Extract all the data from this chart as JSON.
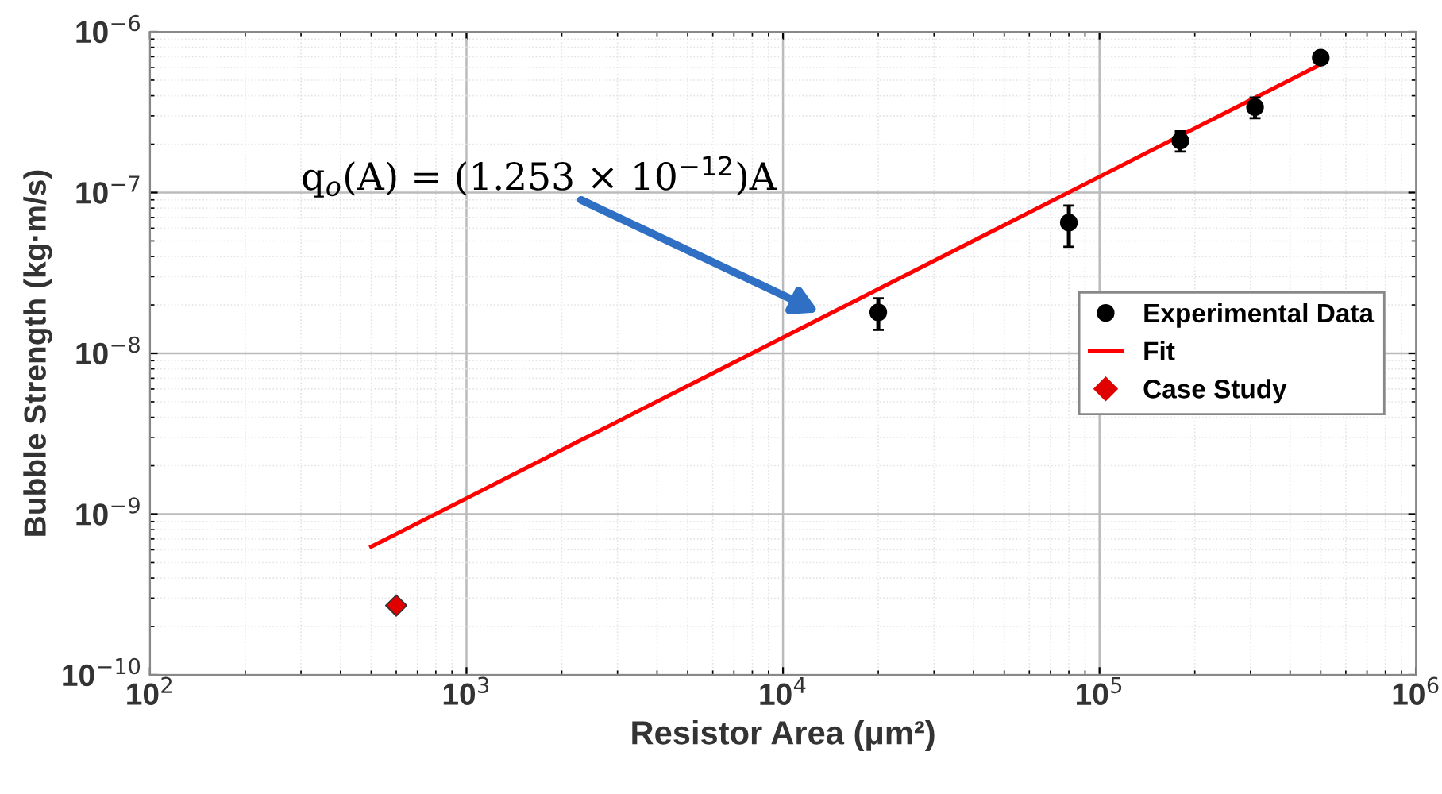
{
  "chart_data": {
    "type": "scatter",
    "xlabel": "Resistor Area (μm²)",
    "ylabel": "Bubble Strength (kg·m/s)",
    "log": "xy",
    "grid": true,
    "legend": "center right",
    "xlim": [
      100,
      1000000
    ],
    "ylim": [
      1e-10,
      1e-06
    ],
    "xticks": [
      {
        "value": 100,
        "label": "10$^{2}$"
      },
      {
        "value": 1000,
        "label": "10$^{3}$"
      },
      {
        "value": 10000,
        "label": "10$^{4}$"
      },
      {
        "value": 100000,
        "label": "10$^{5}$"
      },
      {
        "value": 1000000,
        "label": "10$^{6}$"
      }
    ],
    "yticks": [
      {
        "value": 1e-10,
        "label": "10$^{−10}$"
      },
      {
        "value": 1e-09,
        "label": "10$^{−9}$"
      },
      {
        "value": 1e-08,
        "label": "10$^{−8}$"
      },
      {
        "value": 1e-07,
        "label": "10$^{−7}$"
      },
      {
        "value": 1e-06,
        "label": "10$^{−6}$"
      }
    ],
    "series": [
      {
        "name": "Experimental Data",
        "marker": "circle",
        "color": "#000000",
        "x": [
          20000,
          80000,
          180000,
          310000,
          500000
        ],
        "values": [
          1.8e-08,
          6.5e-08,
          2.1e-07,
          3.4e-07,
          6.9e-07
        ],
        "errors": [
          [
            1.4e-08,
            2.2e-08
          ],
          [
            4.6e-08,
            8.3e-08
          ],
          [
            1.8e-07,
            2.4e-07
          ],
          [
            2.9e-07,
            3.9e-07
          ],
          null
        ]
      },
      {
        "name": "Fit",
        "type": "line",
        "marker": "none",
        "line_style": "solid",
        "color": "#ff0000",
        "x": [
          500,
          500000
        ],
        "values": [
          6.27e-10,
          6.27e-07
        ]
      },
      {
        "name": "Case Study",
        "marker": "diamond",
        "color": "#e00000",
        "x": [
          600
        ],
        "values": [
          2.7e-10
        ]
      }
    ],
    "annotations": [
      "q$_{o}$(A) = (1.253 × 10$^{−12}$)A"
    ]
  }
}
